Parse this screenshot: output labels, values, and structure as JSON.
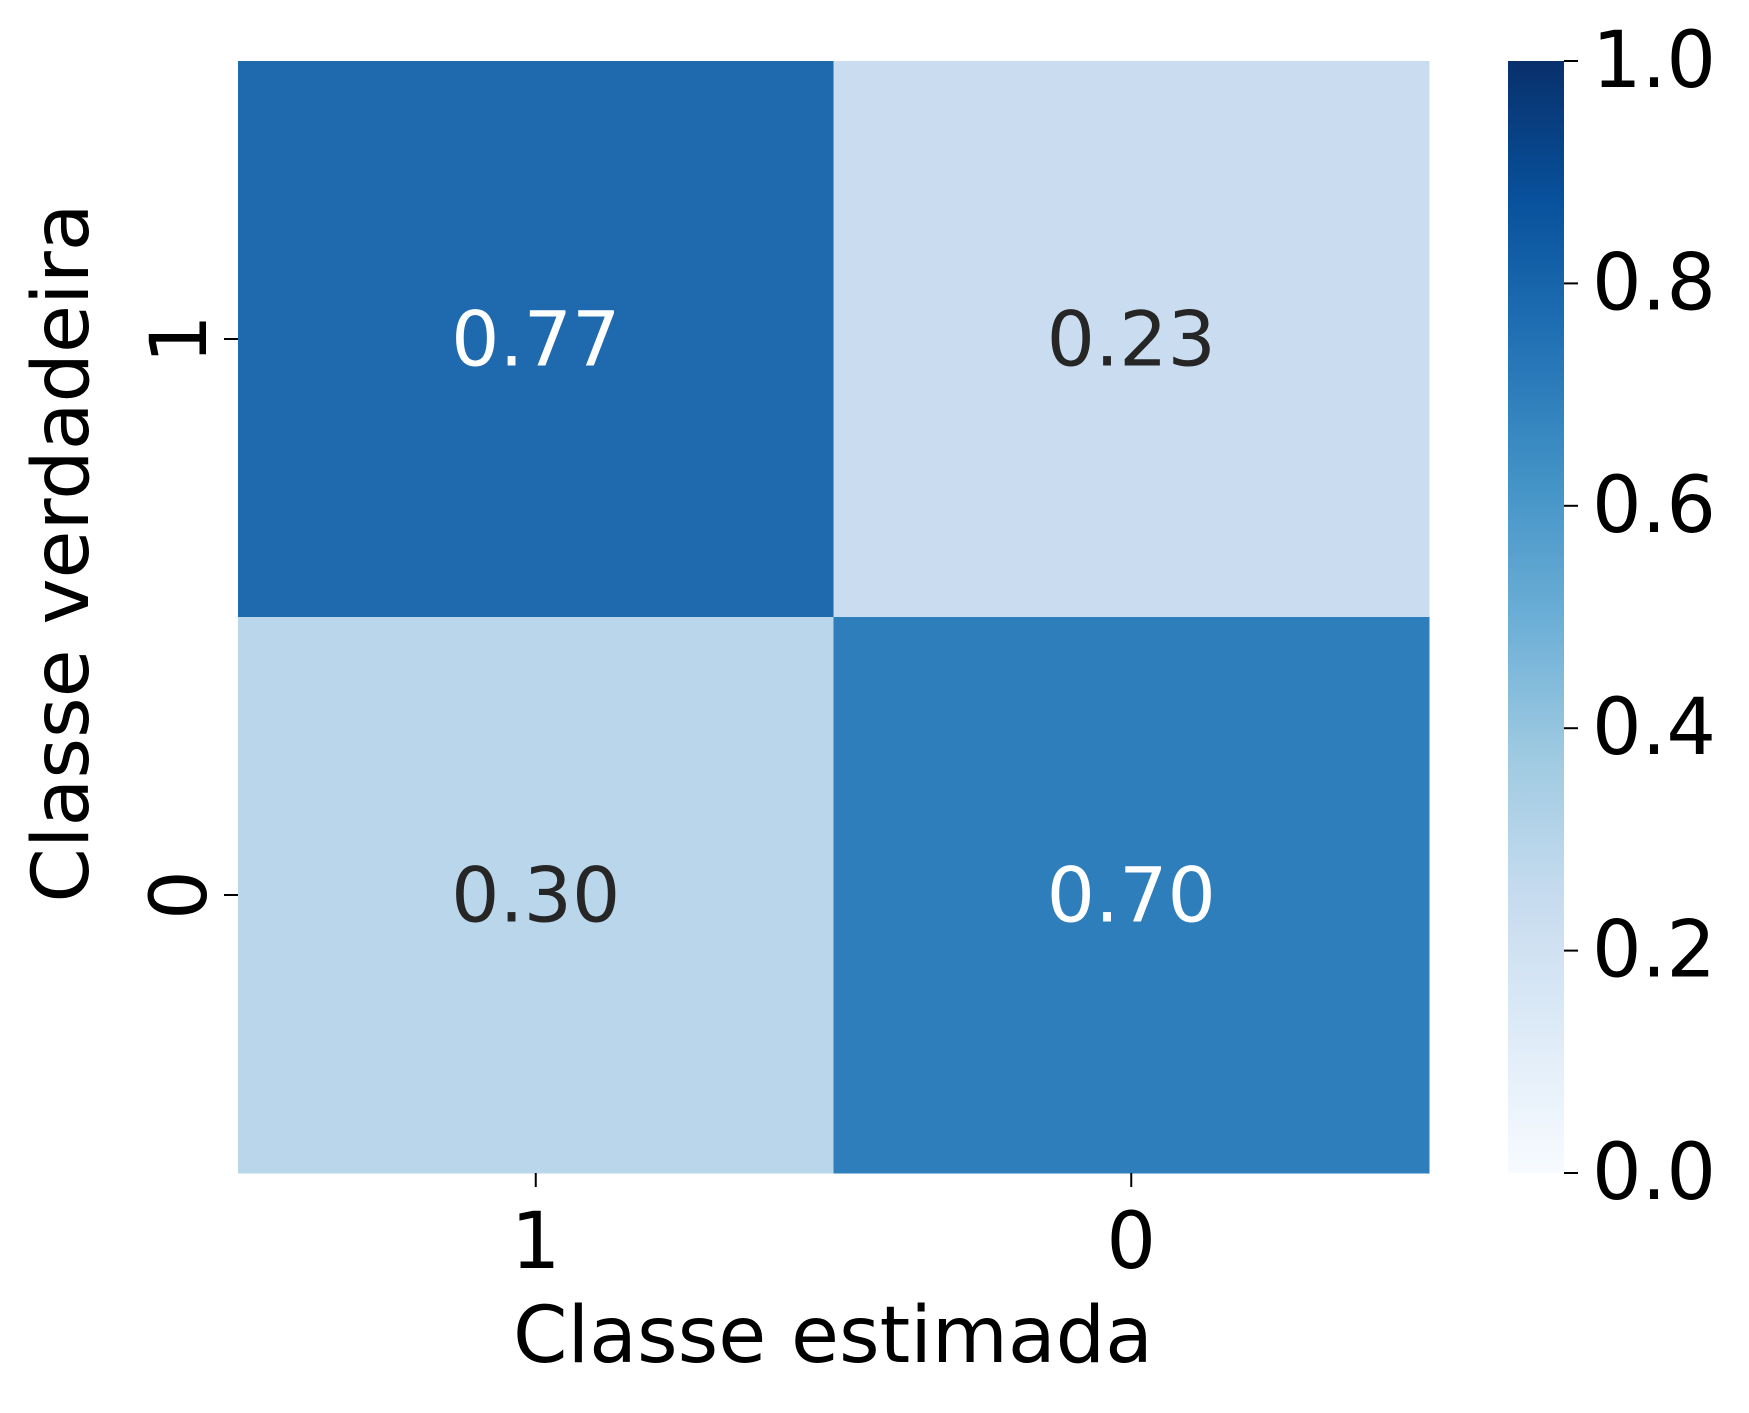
{
  "chart_data": {
    "type": "heatmap",
    "x_categories": [
      "1",
      "0"
    ],
    "y_categories": [
      "1",
      "0"
    ],
    "values": [
      [
        0.77,
        0.23
      ],
      [
        0.3,
        0.7
      ]
    ],
    "value_labels": [
      [
        "0.77",
        "0.23"
      ],
      [
        "0.30",
        "0.70"
      ]
    ],
    "xlabel": "Classe estimada",
    "ylabel": "Classe verdadeira",
    "colorbar": {
      "range": [
        0.0,
        1.0
      ],
      "ticks": [
        0.0,
        0.2,
        0.4,
        0.6,
        0.8,
        1.0
      ],
      "tick_labels": [
        "0.0",
        "0.2",
        "0.4",
        "0.6",
        "0.8",
        "1.0"
      ],
      "colormap": "Blues"
    },
    "colors": {
      "cell_0_0": "#1f6aaf",
      "cell_0_1": "#cadcef",
      "cell_1_0": "#bad6ea",
      "cell_1_1": "#2e7ebc",
      "text_on_dark": "#ffffff",
      "text_on_light": "#262626",
      "axis_text": "#000000"
    }
  }
}
